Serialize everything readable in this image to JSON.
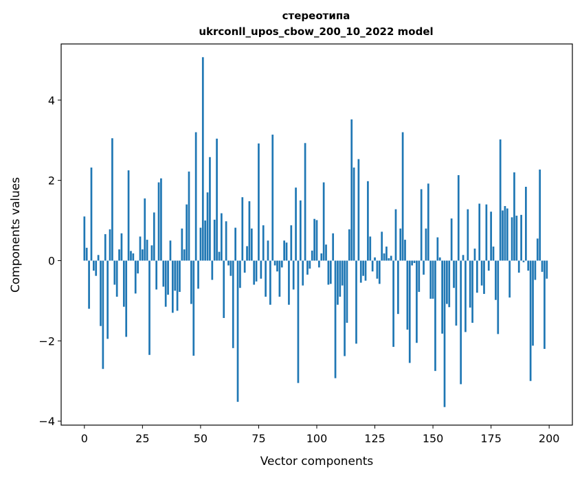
{
  "chart_data": {
    "type": "bar",
    "title": "стереотипа",
    "subtitle": "ukrconll_upos_cbow_200_10_2022 model",
    "xlabel": "Vector components",
    "ylabel": "Components values",
    "xlim": [
      -10,
      210
    ],
    "ylim": [
      -4.1,
      5.4
    ],
    "x_ticks": [
      0,
      25,
      50,
      75,
      100,
      125,
      150,
      175,
      200
    ],
    "y_ticks": [
      -4,
      -2,
      0,
      2,
      4
    ],
    "bar_color": "#1f77b4",
    "grid": false,
    "values": [
      1.1,
      0.32,
      -1.2,
      2.32,
      -0.25,
      -0.38,
      0.14,
      -1.63,
      -2.7,
      0.66,
      -1.95,
      0.78,
      3.05,
      -0.6,
      -0.9,
      0.28,
      0.68,
      -1.15,
      -1.9,
      2.25,
      0.24,
      0.18,
      -0.82,
      -0.32,
      0.6,
      0.28,
      1.55,
      0.52,
      -2.35,
      0.38,
      1.2,
      -0.72,
      1.95,
      2.05,
      -0.65,
      -1.15,
      -0.85,
      0.5,
      -1.3,
      -0.75,
      -1.25,
      -0.78,
      0.8,
      0.28,
      1.4,
      2.22,
      -1.08,
      -2.37,
      3.2,
      -0.7,
      0.82,
      5.07,
      1.0,
      1.7,
      2.58,
      -0.48,
      1.02,
      3.04,
      0.22,
      1.18,
      -1.43,
      0.98,
      -0.12,
      -0.38,
      -2.18,
      0.82,
      -3.52,
      -0.68,
      1.58,
      -0.3,
      0.36,
      1.48,
      0.8,
      -0.6,
      -0.52,
      2.92,
      -0.45,
      0.88,
      -0.9,
      0.5,
      -1.1,
      3.14,
      -0.12,
      -0.27,
      -0.9,
      -0.17,
      0.5,
      0.45,
      -1.1,
      0.88,
      -0.72,
      1.82,
      -3.05,
      1.5,
      -0.62,
      2.93,
      -0.35,
      -0.2,
      0.25,
      1.04,
      1.01,
      -0.17,
      0.18,
      1.95,
      0.4,
      -0.6,
      -0.58,
      0.68,
      -2.93,
      -1.1,
      -0.9,
      -0.62,
      -2.38,
      -1.55,
      0.78,
      3.52,
      2.32,
      -2.07,
      2.53,
      -0.55,
      -0.38,
      -0.5,
      1.98,
      0.6,
      -0.27,
      0.08,
      -0.45,
      -0.58,
      0.72,
      0.18,
      0.35,
      0.06,
      0.12,
      -2.15,
      1.28,
      -1.33,
      0.8,
      3.2,
      0.52,
      -1.72,
      -2.55,
      -0.12,
      -0.06,
      -2.05,
      -0.78,
      1.78,
      -0.35,
      0.8,
      1.92,
      -0.95,
      -0.95,
      -2.75,
      0.58,
      0.08,
      -1.82,
      -3.65,
      -1.08,
      -1.16,
      1.05,
      -0.68,
      -1.62,
      2.13,
      -3.08,
      0.14,
      -1.78,
      1.28,
      -1.17,
      -1.55,
      0.3,
      -0.8,
      1.42,
      -0.62,
      -0.83,
      1.4,
      -0.25,
      1.22,
      0.35,
      -0.98,
      -1.83,
      3.02,
      1.25,
      1.36,
      1.3,
      -0.92,
      1.08,
      2.2,
      1.12,
      -0.3,
      1.14,
      -0.04,
      1.84,
      -0.25,
      -3.0,
      -2.12,
      -0.48,
      0.55,
      2.27,
      -0.28,
      -2.2,
      -0.45
    ]
  }
}
